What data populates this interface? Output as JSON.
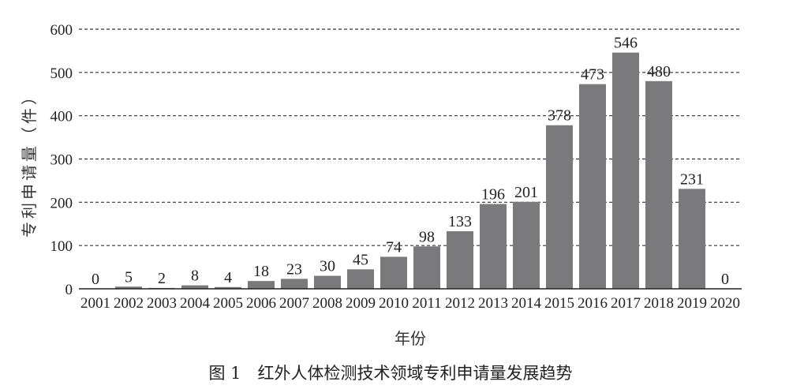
{
  "chart_data": {
    "type": "bar",
    "title": "",
    "xlabel": "年份",
    "ylabel": "专利申请量（件）",
    "caption": "图 1　红外人体检测技术领域专利申请量发展趋势",
    "categories": [
      "2001",
      "2002",
      "2003",
      "2004",
      "2005",
      "2006",
      "2007",
      "2008",
      "2009",
      "2010",
      "2011",
      "2012",
      "2013",
      "2014",
      "2015",
      "2016",
      "2017",
      "2018",
      "2019",
      "2020"
    ],
    "values": [
      0,
      5,
      2,
      8,
      4,
      18,
      23,
      30,
      45,
      74,
      98,
      133,
      196,
      201,
      378,
      473,
      546,
      480,
      231,
      0
    ],
    "ylim": [
      0,
      600
    ],
    "yticks": [
      0,
      100,
      200,
      300,
      400,
      500,
      600
    ],
    "grid": true,
    "grid_style": "dashed",
    "bar_color": "#7a7a7c",
    "legend": "none"
  }
}
